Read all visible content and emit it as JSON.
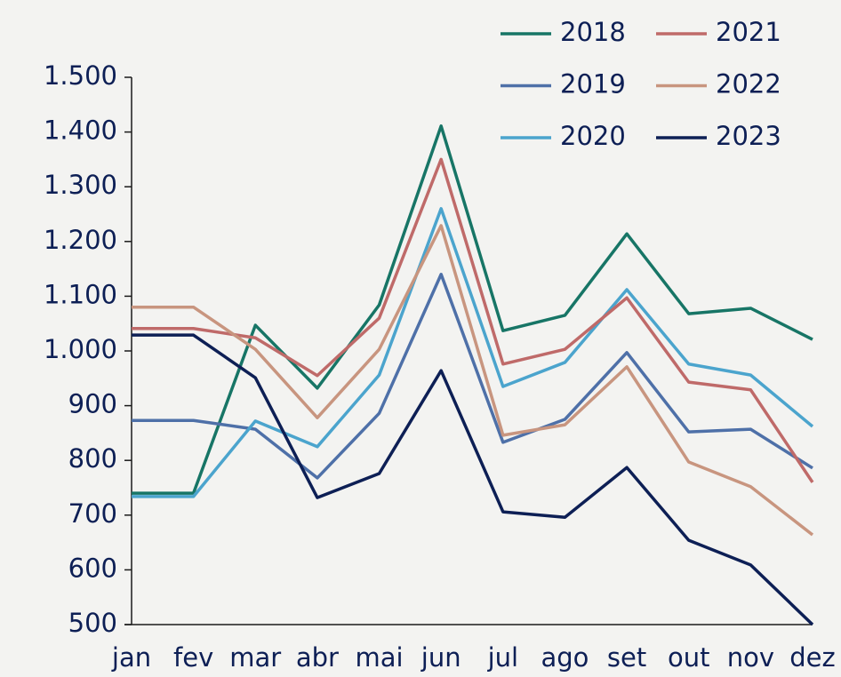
{
  "chart_data": {
    "type": "line",
    "categories": [
      "jan",
      "fev",
      "mar",
      "abr",
      "mai",
      "jun",
      "jul",
      "ago",
      "set",
      "out",
      "nov",
      "dez"
    ],
    "series": [
      {
        "name": "2018",
        "color": "#177566",
        "values": [
          740,
          740,
          1047,
          932,
          1084,
          1411,
          1037,
          1065,
          1214,
          1068,
          1078,
          1021
        ]
      },
      {
        "name": "2019",
        "color": "#4e70a8",
        "values": [
          873,
          873,
          857,
          768,
          886,
          1140,
          833,
          875,
          997,
          852,
          857,
          786
        ]
      },
      {
        "name": "2020",
        "color": "#4ba4cd",
        "values": [
          734,
          734,
          872,
          825,
          956,
          1260,
          935,
          979,
          1112,
          976,
          956,
          862
        ]
      },
      {
        "name": "2021",
        "color": "#bf6a69",
        "values": [
          1041,
          1041,
          1024,
          955,
          1060,
          1350,
          976,
          1003,
          1097,
          943,
          929,
          760
        ]
      },
      {
        "name": "2022",
        "color": "#c8957f",
        "values": [
          1080,
          1080,
          1003,
          878,
          1003,
          1229,
          846,
          865,
          971,
          797,
          752,
          664
        ]
      },
      {
        "name": "2023",
        "color": "#0d1f55",
        "values": [
          1029,
          1029,
          951,
          732,
          776,
          964,
          706,
          696,
          787,
          654,
          609,
          500
        ]
      }
    ],
    "ylim": [
      500,
      1500
    ],
    "yticks": [
      500,
      600,
      700,
      800,
      900,
      {
        "value": 1000,
        "label": "1.000"
      },
      {
        "value": 1100,
        "label": "1.100"
      },
      {
        "value": 1200,
        "label": "1.200"
      },
      {
        "value": 1300,
        "label": "1.300"
      },
      {
        "value": 1400,
        "label": "1.400"
      },
      {
        "value": 1500,
        "label": "1.500"
      }
    ],
    "legend": "top-right"
  }
}
